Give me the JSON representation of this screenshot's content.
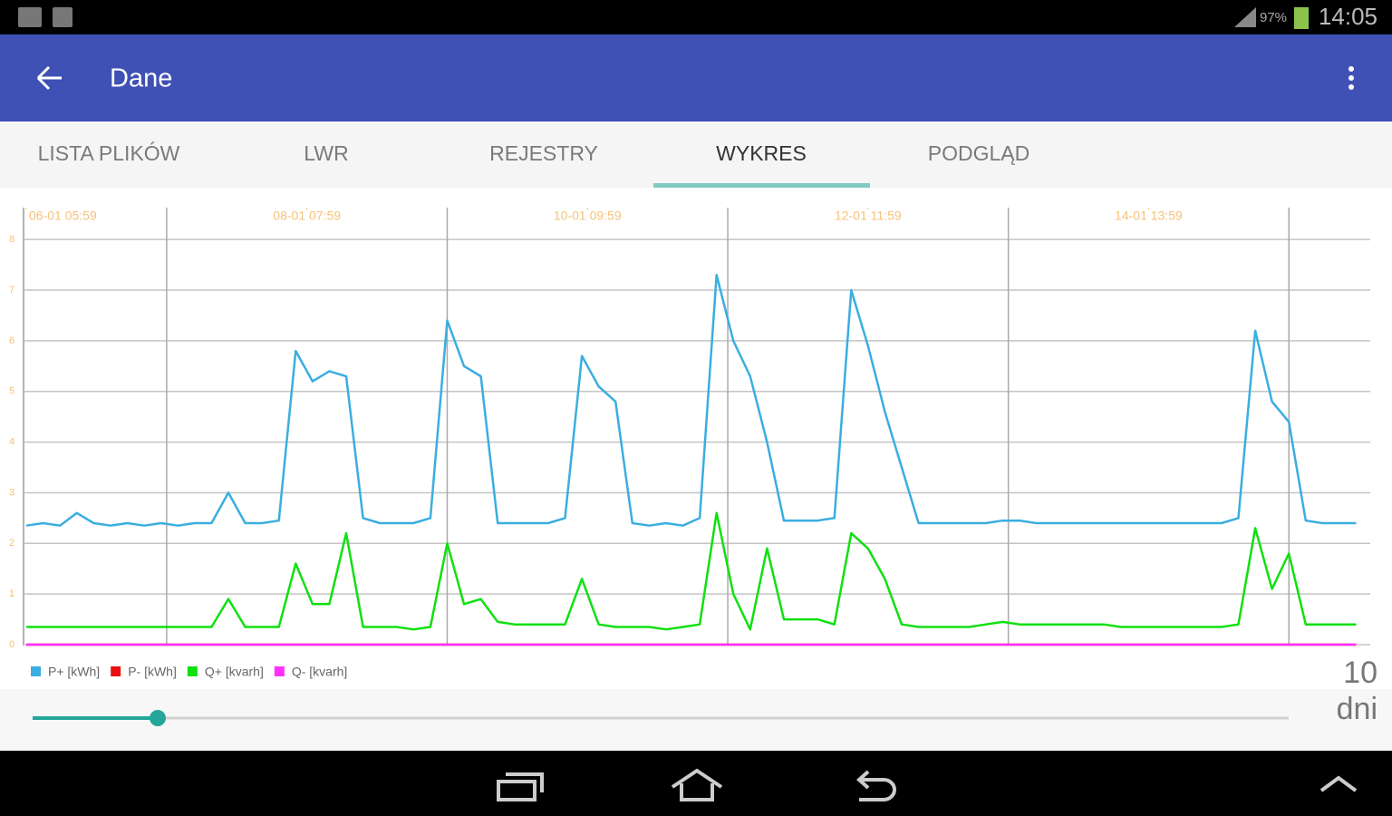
{
  "status_bar": {
    "battery": "97%",
    "time": "14:05"
  },
  "app_bar": {
    "title": "Dane"
  },
  "tabs": {
    "items": [
      "LISTA PLIKÓW",
      "LWR",
      "REJESTRY",
      "WYKRES",
      "PODGLĄD"
    ],
    "selected": 3
  },
  "chart_data": {
    "type": "line",
    "x": [
      0,
      3,
      6,
      9,
      12,
      15,
      18,
      21,
      24,
      27,
      30,
      33,
      36,
      39,
      42,
      45,
      48,
      51,
      54,
      57,
      60,
      63,
      66,
      69,
      72,
      75,
      78,
      81,
      84,
      87,
      90,
      93,
      96,
      99,
      102,
      105,
      108,
      111,
      114,
      117,
      120,
      123,
      126,
      129,
      132,
      135,
      138,
      141,
      144,
      147,
      150,
      153,
      156,
      159,
      162,
      165,
      168,
      171,
      174,
      177,
      180,
      183,
      186,
      189,
      192,
      195,
      198,
      201,
      204,
      207,
      210,
      213,
      216,
      219,
      222,
      225,
      228,
      231,
      234,
      237
    ],
    "series": [
      {
        "name": "P+ [kWh]",
        "color": "#3aaee0",
        "values": [
          2.35,
          2.4,
          2.35,
          2.6,
          2.4,
          2.35,
          2.4,
          2.35,
          2.4,
          2.35,
          2.4,
          2.4,
          3.0,
          2.4,
          2.4,
          2.45,
          5.8,
          5.2,
          5.4,
          5.3,
          2.5,
          2.4,
          2.4,
          2.4,
          2.5,
          6.4,
          5.5,
          5.3,
          2.4,
          2.4,
          2.4,
          2.4,
          2.5,
          5.7,
          5.1,
          4.8,
          2.4,
          2.35,
          2.4,
          2.35,
          2.5,
          7.3,
          6.0,
          5.3,
          4.0,
          2.45,
          2.45,
          2.45,
          2.5,
          7.0,
          5.9,
          4.6,
          3.5,
          2.4,
          2.4,
          2.4,
          2.4,
          2.4,
          2.45,
          2.45,
          2.4,
          2.4,
          2.4,
          2.4,
          2.4,
          2.4,
          2.4,
          2.4,
          2.4,
          2.4,
          2.4,
          2.4,
          2.5,
          6.2,
          4.8,
          4.4,
          2.45,
          2.4,
          2.4,
          2.4
        ]
      },
      {
        "name": "P- [kWh]",
        "color": "#e81010",
        "values": [
          0,
          0,
          0,
          0,
          0,
          0,
          0,
          0,
          0,
          0,
          0,
          0,
          0,
          0,
          0,
          0,
          0,
          0,
          0,
          0,
          0,
          0,
          0,
          0,
          0,
          0,
          0,
          0,
          0,
          0,
          0,
          0,
          0,
          0,
          0,
          0,
          0,
          0,
          0,
          0,
          0,
          0,
          0,
          0,
          0,
          0,
          0,
          0,
          0,
          0,
          0,
          0,
          0,
          0,
          0,
          0,
          0,
          0,
          0,
          0,
          0,
          0,
          0,
          0,
          0,
          0,
          0,
          0,
          0,
          0,
          0,
          0,
          0,
          0,
          0,
          0,
          0,
          0,
          0,
          0
        ]
      },
      {
        "name": "Q+ [kvarh]",
        "color": "#10e010",
        "values": [
          0.35,
          0.35,
          0.35,
          0.35,
          0.35,
          0.35,
          0.35,
          0.35,
          0.35,
          0.35,
          0.35,
          0.35,
          0.9,
          0.35,
          0.35,
          0.35,
          1.6,
          0.8,
          0.8,
          2.2,
          0.35,
          0.35,
          0.35,
          0.3,
          0.35,
          2.0,
          0.8,
          0.9,
          0.45,
          0.4,
          0.4,
          0.4,
          0.4,
          1.3,
          0.4,
          0.35,
          0.35,
          0.35,
          0.3,
          0.35,
          0.4,
          2.6,
          1.0,
          0.3,
          1.9,
          0.5,
          0.5,
          0.5,
          0.4,
          2.2,
          1.9,
          1.3,
          0.4,
          0.35,
          0.35,
          0.35,
          0.35,
          0.4,
          0.45,
          0.4,
          0.4,
          0.4,
          0.4,
          0.4,
          0.4,
          0.35,
          0.35,
          0.35,
          0.35,
          0.35,
          0.35,
          0.35,
          0.4,
          2.3,
          1.1,
          1.8,
          0.4,
          0.4,
          0.4,
          0.4
        ]
      },
      {
        "name": "Q- [kvarh]",
        "color": "#ff30ff",
        "values": [
          0,
          0,
          0,
          0,
          0,
          0,
          0,
          0,
          0,
          0,
          0,
          0,
          0,
          0,
          0,
          0,
          0,
          0,
          0,
          0,
          0,
          0,
          0,
          0,
          0,
          0,
          0,
          0,
          0,
          0,
          0,
          0,
          0,
          0,
          0,
          0,
          0,
          0,
          0,
          0,
          0,
          0,
          0,
          0,
          0,
          0,
          0,
          0,
          0,
          0,
          0,
          0,
          0,
          0,
          0,
          0,
          0,
          0,
          0,
          0,
          0,
          0,
          0,
          0,
          0,
          0,
          0,
          0,
          0,
          0,
          0,
          0,
          0,
          0,
          0,
          0,
          0,
          0,
          0,
          0
        ]
      }
    ],
    "xlim": [
      -0.5,
      239.5
    ],
    "xticks": [
      {
        "value": 0,
        "label": "06-01 05:59"
      },
      {
        "value": 50,
        "label": "08-01 07:59"
      },
      {
        "value": 100,
        "label": "10-01 09:59"
      },
      {
        "value": 150,
        "label": "12-01 11:59"
      },
      {
        "value": 200,
        "label": "14-01 13:59"
      }
    ],
    "xgrid": [
      25,
      75,
      125,
      175,
      225
    ],
    "ylim": [
      0,
      8.63
    ],
    "yticks": [
      0,
      1,
      2,
      3,
      4,
      5,
      6,
      7,
      8
    ],
    "grid": true
  },
  "range": {
    "value": "10",
    "unit": "dni"
  }
}
